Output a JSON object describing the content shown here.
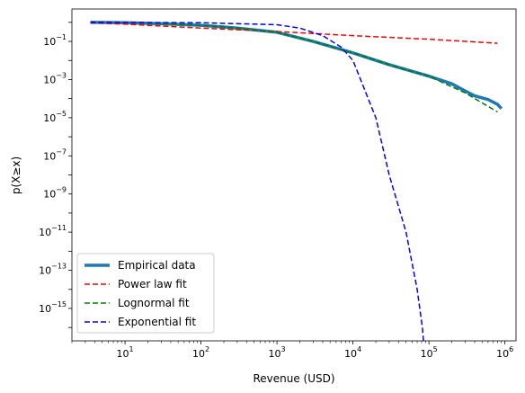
{
  "chart_data": {
    "type": "line",
    "title": "",
    "xlabel": "Revenue (USD)",
    "ylabel": "p(X≥x)",
    "xscale": "log",
    "yscale": "log",
    "xlim": [
      2.0,
      1400000
    ],
    "ylim": [
      2e-17,
      5
    ],
    "grid": false,
    "legend_position": "lower-left",
    "x_tick_labels": [
      {
        "base": "10",
        "exp": "1",
        "value": 10
      },
      {
        "base": "10",
        "exp": "2",
        "value": 100
      },
      {
        "base": "10",
        "exp": "3",
        "value": 1000
      },
      {
        "base": "10",
        "exp": "4",
        "value": 10000
      },
      {
        "base": "10",
        "exp": "5",
        "value": 100000
      },
      {
        "base": "10",
        "exp": "6",
        "value": 1000000
      }
    ],
    "y_tick_labels": [
      {
        "base": "10",
        "exp": "−1",
        "value": 0.1
      },
      {
        "base": "10",
        "exp": "−3",
        "value": 0.001
      },
      {
        "base": "10",
        "exp": "−5",
        "value": 1e-05
      },
      {
        "base": "10",
        "exp": "−7",
        "value": 1e-07
      },
      {
        "base": "10",
        "exp": "−9",
        "value": 1e-09
      },
      {
        "base": "10",
        "exp": "−11",
        "value": 1e-11
      },
      {
        "base": "10",
        "exp": "−13",
        "value": 1e-13
      },
      {
        "base": "10",
        "exp": "−15",
        "value": 1e-15
      }
    ],
    "series": [
      {
        "name": "Empirical data",
        "color": "#1f77b4",
        "style": "solid",
        "points": [
          [
            3.5,
            1.0
          ],
          [
            10,
            0.95
          ],
          [
            30,
            0.85
          ],
          [
            100,
            0.7
          ],
          [
            300,
            0.5
          ],
          [
            1000,
            0.3
          ],
          [
            3000,
            0.1
          ],
          [
            10000,
            0.025
          ],
          [
            30000,
            0.006
          ],
          [
            100000,
            0.0015
          ],
          [
            200000,
            0.0006
          ],
          [
            300000,
            0.00025
          ],
          [
            400000,
            0.00014
          ],
          [
            600000,
            9e-05
          ],
          [
            800000,
            5e-05
          ],
          [
            900000,
            3e-05
          ]
        ]
      },
      {
        "name": "Power law fit",
        "color": "#ff0000",
        "style": "dashed",
        "points": [
          [
            3.5,
            0.95
          ],
          [
            10,
            0.8
          ],
          [
            100,
            0.5
          ],
          [
            1000,
            0.33
          ],
          [
            10000,
            0.2
          ],
          [
            100000,
            0.13
          ],
          [
            800000,
            0.08
          ]
        ]
      },
      {
        "name": "Lognormal fit",
        "color": "#008000",
        "style": "dashed",
        "points": [
          [
            3.5,
            1.0
          ],
          [
            10,
            0.95
          ],
          [
            30,
            0.85
          ],
          [
            100,
            0.7
          ],
          [
            300,
            0.5
          ],
          [
            1000,
            0.3
          ],
          [
            3000,
            0.1
          ],
          [
            10000,
            0.025
          ],
          [
            30000,
            0.006
          ],
          [
            100000,
            0.0015
          ],
          [
            300000,
            0.0002
          ],
          [
            800000,
            2e-05
          ]
        ]
      },
      {
        "name": "Exponential fit",
        "color": "#0000ff",
        "style": "dashed",
        "points": [
          [
            3.5,
            1.0
          ],
          [
            100,
            0.95
          ],
          [
            1000,
            0.75
          ],
          [
            2000,
            0.5
          ],
          [
            4000,
            0.2
          ],
          [
            7000,
            0.05
          ],
          [
            10000,
            0.01
          ],
          [
            20000,
            1e-05
          ],
          [
            30000,
            1e-08
          ],
          [
            50000,
            1e-11
          ],
          [
            70000,
            1e-14
          ],
          [
            82000,
            1e-16
          ],
          [
            86000,
            1e-17
          ]
        ]
      }
    ]
  }
}
